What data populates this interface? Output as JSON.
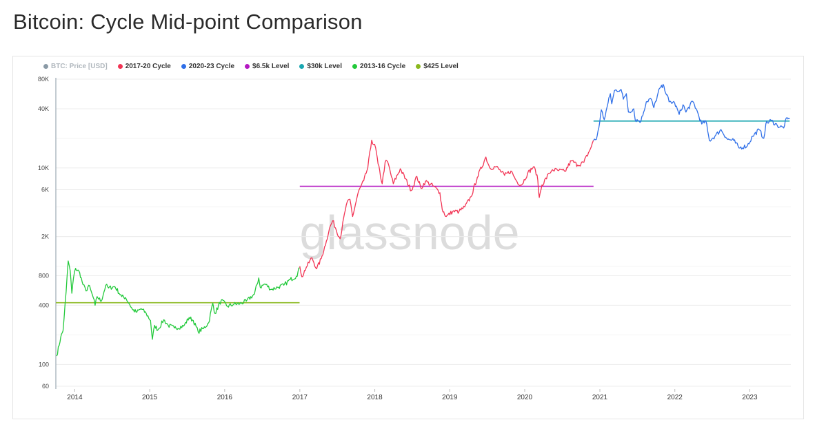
{
  "page": {
    "title": "Bitcoin: Cycle Mid-point Comparison"
  },
  "watermark": "glassnode",
  "colors": {
    "btc_price": "#8a9aa6",
    "cycle_2017_20": "#f23454",
    "cycle_2020_23": "#2f6fe8",
    "level_6_5k": "#b418c2",
    "level_30k": "#1aa7b1",
    "cycle_2013_16": "#22c93a",
    "level_425": "#8ab81e",
    "grid": "#ececec",
    "axis": "#8a9aa6"
  },
  "legend": [
    {
      "label": "BTC: Price [USD]",
      "color": "#8a9aa6",
      "muted": true
    },
    {
      "label": "2017-20 Cycle",
      "color": "#f23454",
      "muted": false
    },
    {
      "label": "2020-23 Cycle",
      "color": "#2f6fe8",
      "muted": false
    },
    {
      "label": "$6.5k Level",
      "color": "#b418c2",
      "muted": false
    },
    {
      "label": "$30k Level",
      "color": "#1aa7b1",
      "muted": false
    },
    {
      "label": "2013-16 Cycle",
      "color": "#22c93a",
      "muted": false
    },
    {
      "label": "$425 Level",
      "color": "#8ab81e",
      "muted": false
    }
  ],
  "chart_data": {
    "type": "line",
    "title": "Bitcoin: Cycle Mid-point Comparison",
    "y_scale": "log",
    "ylim": [
      60,
      80000
    ],
    "xlim": [
      "2013-10-01",
      "2023-07-20"
    ],
    "y_ticks": [
      {
        "value": 60,
        "label": "60"
      },
      {
        "value": 100,
        "label": "100"
      },
      {
        "value": 400,
        "label": "400"
      },
      {
        "value": 800,
        "label": "800"
      },
      {
        "value": 2000,
        "label": "2K"
      },
      {
        "value": 6000,
        "label": "6K"
      },
      {
        "value": 10000,
        "label": "10K"
      },
      {
        "value": 40000,
        "label": "40K"
      },
      {
        "value": 80000,
        "label": "80K"
      }
    ],
    "x_ticks": [
      {
        "value": "2014-01-01",
        "label": "2014"
      },
      {
        "value": "2015-01-01",
        "label": "2015"
      },
      {
        "value": "2016-01-01",
        "label": "2016"
      },
      {
        "value": "2017-01-01",
        "label": "2017"
      },
      {
        "value": "2018-01-01",
        "label": "2018"
      },
      {
        "value": "2019-01-01",
        "label": "2019"
      },
      {
        "value": "2020-01-01",
        "label": "2020"
      },
      {
        "value": "2021-01-01",
        "label": "2021"
      },
      {
        "value": "2022-01-01",
        "label": "2022"
      },
      {
        "value": "2023-01-01",
        "label": "2023"
      }
    ],
    "grid": true,
    "legend_position": "top-left",
    "series": [
      {
        "name": "2013-16 Cycle",
        "color": "#22c93a",
        "points": [
          [
            "2013-10-05",
            122
          ],
          [
            "2013-10-25",
            190
          ],
          [
            "2013-11-05",
            220
          ],
          [
            "2013-11-20",
            550
          ],
          [
            "2013-11-30",
            1130
          ],
          [
            "2013-12-10",
            900
          ],
          [
            "2013-12-18",
            530
          ],
          [
            "2013-12-26",
            760
          ],
          [
            "2014-01-05",
            950
          ],
          [
            "2014-01-25",
            860
          ],
          [
            "2014-02-10",
            650
          ],
          [
            "2014-02-25",
            560
          ],
          [
            "2014-03-10",
            640
          ],
          [
            "2014-04-01",
            480
          ],
          [
            "2014-04-10",
            400
          ],
          [
            "2014-04-20",
            490
          ],
          [
            "2014-05-10",
            440
          ],
          [
            "2014-06-01",
            640
          ],
          [
            "2014-06-15",
            600
          ],
          [
            "2014-07-15",
            620
          ],
          [
            "2014-08-18",
            490
          ],
          [
            "2014-09-05",
            480
          ],
          [
            "2014-09-25",
            410
          ],
          [
            "2014-10-10",
            360
          ],
          [
            "2014-10-30",
            340
          ],
          [
            "2014-11-20",
            370
          ],
          [
            "2014-12-15",
            330
          ],
          [
            "2015-01-05",
            280
          ],
          [
            "2015-01-14",
            180
          ],
          [
            "2015-01-25",
            250
          ],
          [
            "2015-02-10",
            225
          ],
          [
            "2015-03-10",
            285
          ],
          [
            "2015-04-01",
            250
          ],
          [
            "2015-05-01",
            235
          ],
          [
            "2015-06-15",
            245
          ],
          [
            "2015-07-12",
            300
          ],
          [
            "2015-08-01",
            280
          ],
          [
            "2015-08-25",
            215
          ],
          [
            "2015-09-20",
            232
          ],
          [
            "2015-10-15",
            265
          ],
          [
            "2015-11-04",
            420
          ],
          [
            "2015-11-15",
            330
          ],
          [
            "2015-12-15",
            450
          ],
          [
            "2016-01-15",
            390
          ],
          [
            "2016-02-15",
            410
          ],
          [
            "2016-03-15",
            415
          ],
          [
            "2016-04-15",
            440
          ],
          [
            "2016-05-25",
            520
          ],
          [
            "2016-06-15",
            760
          ],
          [
            "2016-06-22",
            610
          ],
          [
            "2016-07-15",
            660
          ],
          [
            "2016-08-15",
            580
          ],
          [
            "2016-09-15",
            610
          ],
          [
            "2016-10-15",
            640
          ],
          [
            "2016-11-15",
            730
          ],
          [
            "2016-12-15",
            790
          ],
          [
            "2016-12-31",
            960
          ]
        ]
      },
      {
        "name": "2017-20 Cycle",
        "color": "#f23454",
        "points": [
          [
            "2017-01-01",
            1000
          ],
          [
            "2017-01-11",
            780
          ],
          [
            "2017-02-01",
            970
          ],
          [
            "2017-03-01",
            1220
          ],
          [
            "2017-03-24",
            940
          ],
          [
            "2017-04-15",
            1190
          ],
          [
            "2017-05-10",
            1800
          ],
          [
            "2017-05-25",
            2400
          ],
          [
            "2017-06-10",
            2900
          ],
          [
            "2017-07-16",
            1900
          ],
          [
            "2017-08-15",
            4200
          ],
          [
            "2017-09-02",
            4800
          ],
          [
            "2017-09-15",
            3200
          ],
          [
            "2017-10-12",
            5600
          ],
          [
            "2017-11-08",
            7400
          ],
          [
            "2017-11-28",
            10000
          ],
          [
            "2017-12-17",
            19200
          ],
          [
            "2018-01-05",
            16000
          ],
          [
            "2018-01-17",
            11000
          ],
          [
            "2018-02-06",
            6900
          ],
          [
            "2018-02-20",
            11400
          ],
          [
            "2018-03-05",
            11500
          ],
          [
            "2018-04-01",
            6900
          ],
          [
            "2018-05-05",
            9800
          ],
          [
            "2018-06-28",
            5900
          ],
          [
            "2018-07-25",
            8200
          ],
          [
            "2018-08-14",
            6200
          ],
          [
            "2018-09-05",
            7300
          ],
          [
            "2018-10-15",
            6500
          ],
          [
            "2018-11-14",
            5600
          ],
          [
            "2018-11-25",
            3800
          ],
          [
            "2018-12-15",
            3200
          ],
          [
            "2019-01-15",
            3600
          ],
          [
            "2019-02-15",
            3600
          ],
          [
            "2019-03-15",
            4000
          ],
          [
            "2019-04-15",
            5100
          ],
          [
            "2019-05-15",
            8000
          ],
          [
            "2019-06-26",
            12900
          ],
          [
            "2019-07-15",
            10000
          ],
          [
            "2019-08-15",
            10300
          ],
          [
            "2019-09-25",
            8400
          ],
          [
            "2019-10-26",
            9300
          ],
          [
            "2019-11-25",
            7200
          ],
          [
            "2019-12-17",
            6700
          ],
          [
            "2020-01-15",
            8800
          ],
          [
            "2020-02-13",
            10300
          ],
          [
            "2020-03-01",
            8500
          ],
          [
            "2020-03-12",
            5000
          ],
          [
            "2020-03-25",
            6700
          ],
          [
            "2020-04-30",
            8800
          ],
          [
            "2020-05-15",
            9600
          ],
          [
            "2020-06-15",
            9400
          ],
          [
            "2020-07-15",
            9200
          ],
          [
            "2020-08-15",
            11800
          ],
          [
            "2020-09-15",
            10700
          ],
          [
            "2020-10-15",
            11400
          ],
          [
            "2020-11-15",
            15500
          ],
          [
            "2020-11-30",
            19000
          ]
        ]
      },
      {
        "name": "2020-23 Cycle",
        "color": "#2f6fe8",
        "points": [
          [
            "2020-12-01",
            19000
          ],
          [
            "2020-12-15",
            19500
          ],
          [
            "2020-12-31",
            29000
          ],
          [
            "2021-01-08",
            39000
          ],
          [
            "2021-01-22",
            31000
          ],
          [
            "2021-02-10",
            46000
          ],
          [
            "2021-02-21",
            57000
          ],
          [
            "2021-02-28",
            45000
          ],
          [
            "2021-03-13",
            61000
          ],
          [
            "2021-04-14",
            63000
          ],
          [
            "2021-04-25",
            50000
          ],
          [
            "2021-05-10",
            57000
          ],
          [
            "2021-05-20",
            37000
          ],
          [
            "2021-06-15",
            40000
          ],
          [
            "2021-06-22",
            31000
          ],
          [
            "2021-07-20",
            30000
          ],
          [
            "2021-08-15",
            47000
          ],
          [
            "2021-09-05",
            51000
          ],
          [
            "2021-09-21",
            41000
          ],
          [
            "2021-10-20",
            65000
          ],
          [
            "2021-11-09",
            68000
          ],
          [
            "2021-12-04",
            47000
          ],
          [
            "2021-12-31",
            46000
          ],
          [
            "2022-01-22",
            35000
          ],
          [
            "2022-02-10",
            44000
          ],
          [
            "2022-02-24",
            37000
          ],
          [
            "2022-03-29",
            47500
          ],
          [
            "2022-04-15",
            40000
          ],
          [
            "2022-05-12",
            28000
          ],
          [
            "2022-06-01",
            30000
          ],
          [
            "2022-06-18",
            19000
          ],
          [
            "2022-07-15",
            21000
          ],
          [
            "2022-08-14",
            24500
          ],
          [
            "2022-09-15",
            19500
          ],
          [
            "2022-10-15",
            19000
          ],
          [
            "2022-11-09",
            16000
          ],
          [
            "2022-12-20",
            16800
          ],
          [
            "2023-01-15",
            21000
          ],
          [
            "2023-02-15",
            24500
          ],
          [
            "2023-03-10",
            20000
          ],
          [
            "2023-03-20",
            28000
          ],
          [
            "2023-04-14",
            30500
          ],
          [
            "2023-05-15",
            27000
          ],
          [
            "2023-06-15",
            25500
          ],
          [
            "2023-06-23",
            30500
          ],
          [
            "2023-07-14",
            31500
          ]
        ]
      },
      {
        "name": "$425 Level",
        "color": "#8ab81e",
        "points": [
          [
            "2013-10-01",
            425
          ],
          [
            "2016-12-31",
            425
          ]
        ]
      },
      {
        "name": "$6.5k Level",
        "color": "#b418c2",
        "points": [
          [
            "2017-01-01",
            6500
          ],
          [
            "2020-12-01",
            6500
          ]
        ]
      },
      {
        "name": "$30k Level",
        "color": "#1aa7b1",
        "points": [
          [
            "2020-12-01",
            30000
          ],
          [
            "2023-07-14",
            30000
          ]
        ]
      }
    ]
  }
}
